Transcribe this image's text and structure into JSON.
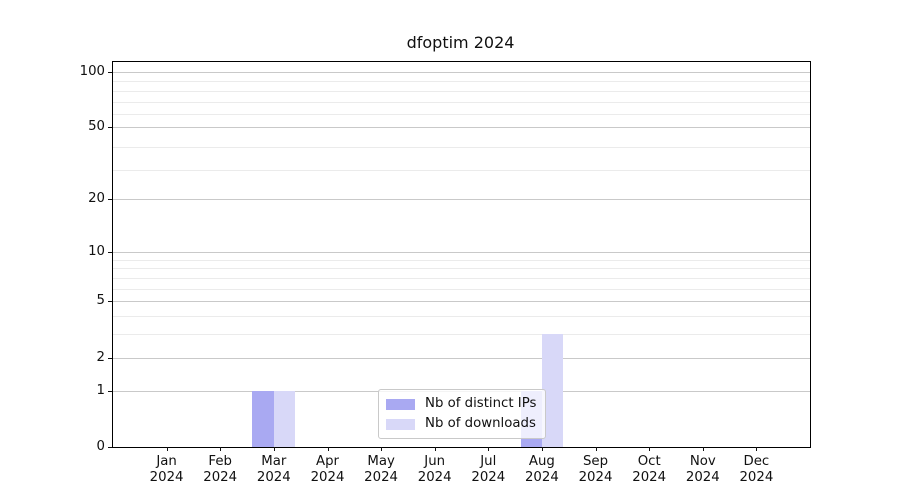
{
  "chart_data": {
    "type": "bar",
    "title": "dfoptim 2024",
    "scale": "log1p",
    "grid": "horizontal",
    "legend_position": "bottom-center",
    "ylim": [
      0,
      112.8
    ],
    "y_ticks": [
      0,
      1,
      2,
      5,
      10,
      20,
      50,
      100
    ],
    "y_minor_gridlines": [
      3,
      4,
      6,
      7,
      8,
      9,
      29,
      39,
      59,
      69,
      79,
      89
    ],
    "categories": [
      {
        "month": "Jan",
        "year": "2024"
      },
      {
        "month": "Feb",
        "year": "2024"
      },
      {
        "month": "Mar",
        "year": "2024"
      },
      {
        "month": "Apr",
        "year": "2024"
      },
      {
        "month": "May",
        "year": "2024"
      },
      {
        "month": "Jun",
        "year": "2024"
      },
      {
        "month": "Jul",
        "year": "2024"
      },
      {
        "month": "Aug",
        "year": "2024"
      },
      {
        "month": "Sep",
        "year": "2024"
      },
      {
        "month": "Oct",
        "year": "2024"
      },
      {
        "month": "Nov",
        "year": "2024"
      },
      {
        "month": "Dec",
        "year": "2024"
      }
    ],
    "series": [
      {
        "name": "Nb of distinct IPs",
        "color": "#a9a9f2",
        "values": [
          0,
          0,
          1,
          0,
          0,
          0,
          0,
          1,
          0,
          0,
          0,
          0
        ]
      },
      {
        "name": "Nb of downloads",
        "color": "#d8d8f8",
        "values": [
          0,
          0,
          1,
          0,
          0,
          0,
          0,
          3,
          0,
          0,
          0,
          0
        ]
      }
    ]
  },
  "colors": {
    "major_grid": "#c9c9c9",
    "minor_grid": "#ebebeb",
    "spine": "#000000",
    "text": "#111111",
    "legend_border": "#c9c9c9"
  }
}
